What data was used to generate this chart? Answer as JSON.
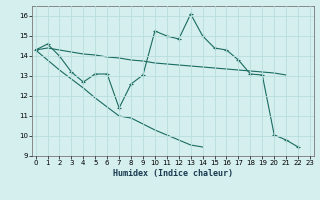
{
  "xlabel": "Humidex (Indice chaleur)",
  "bg_color": "#d4efee",
  "grid_color": "#b8dedd",
  "line_color": "#1a6b60",
  "x_values": [
    0,
    1,
    2,
    3,
    4,
    5,
    6,
    7,
    8,
    9,
    10,
    11,
    12,
    13,
    14,
    15,
    16,
    17,
    18,
    19,
    20,
    21,
    22,
    23
  ],
  "line1_y": [
    14.3,
    14.6,
    14.0,
    13.2,
    12.7,
    13.1,
    13.1,
    11.4,
    12.6,
    13.05,
    15.25,
    15.0,
    14.85,
    16.1,
    15.0,
    14.4,
    14.3,
    13.8,
    13.1,
    13.05,
    10.05,
    9.8,
    9.45
  ],
  "line2_y": [
    14.3,
    14.4,
    14.3,
    14.2,
    14.1,
    14.05,
    13.95,
    13.9,
    13.8,
    13.75,
    13.65,
    13.6,
    13.55,
    13.5,
    13.45,
    13.4,
    13.35,
    13.3,
    13.25,
    13.2,
    13.15,
    13.05
  ],
  "line3_y": [
    14.3,
    13.8,
    13.3,
    12.85,
    12.4,
    11.9,
    11.45,
    11.0,
    10.9,
    10.6,
    10.3,
    10.05,
    9.8,
    9.55,
    9.45
  ],
  "line3_x": [
    0,
    1,
    2,
    3,
    4,
    5,
    6,
    7,
    8,
    9,
    10,
    11,
    12,
    13,
    14
  ],
  "ylim": [
    9,
    16.5
  ],
  "xlim": [
    -0.3,
    23.3
  ],
  "yticks": [
    9,
    10,
    11,
    12,
    13,
    14,
    15,
    16
  ],
  "xticks": [
    0,
    1,
    2,
    3,
    4,
    5,
    6,
    7,
    8,
    9,
    10,
    11,
    12,
    13,
    14,
    15,
    16,
    17,
    18,
    19,
    20,
    21,
    22,
    23
  ]
}
